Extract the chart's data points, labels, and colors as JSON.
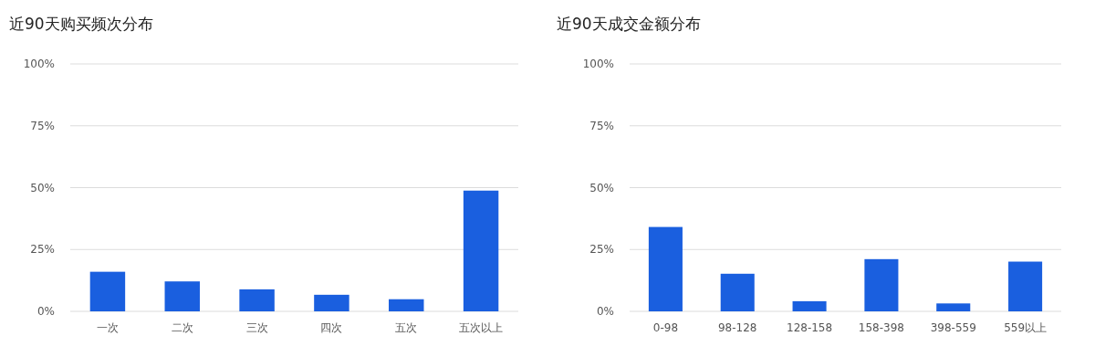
{
  "chart_data": [
    {
      "type": "bar",
      "title": "近90天购买频次分布",
      "categories": [
        "一次",
        "二次",
        "三次",
        "四次",
        "五次",
        "五次以上"
      ],
      "values": [
        16.0,
        12.1,
        8.9,
        6.7,
        4.9,
        48.8
      ],
      "color": "#1a5fdf",
      "ylim": [
        0,
        100
      ],
      "yticks": [
        {
          "value": 0,
          "label": "0%"
        },
        {
          "value": 25,
          "label": "25%"
        },
        {
          "value": 50,
          "label": "50%"
        },
        {
          "value": 75,
          "label": "75%"
        },
        {
          "value": 100,
          "label": "100%"
        }
      ],
      "grid": "y"
    },
    {
      "type": "bar",
      "title": "近90天成交金额分布",
      "categories": [
        "0-98",
        "98-128",
        "128-158",
        "158-398",
        "398-559",
        "559以上"
      ],
      "values": [
        34.1,
        15.2,
        4.1,
        21.1,
        3.2,
        20.1
      ],
      "color": "#1a5fdf",
      "ylim": [
        0,
        100
      ],
      "yticks": [
        {
          "value": 0,
          "label": "0%"
        },
        {
          "value": 25,
          "label": "25%"
        },
        {
          "value": 50,
          "label": "50%"
        },
        {
          "value": 75,
          "label": "75%"
        },
        {
          "value": 100,
          "label": "100%"
        }
      ],
      "grid": "y"
    }
  ]
}
